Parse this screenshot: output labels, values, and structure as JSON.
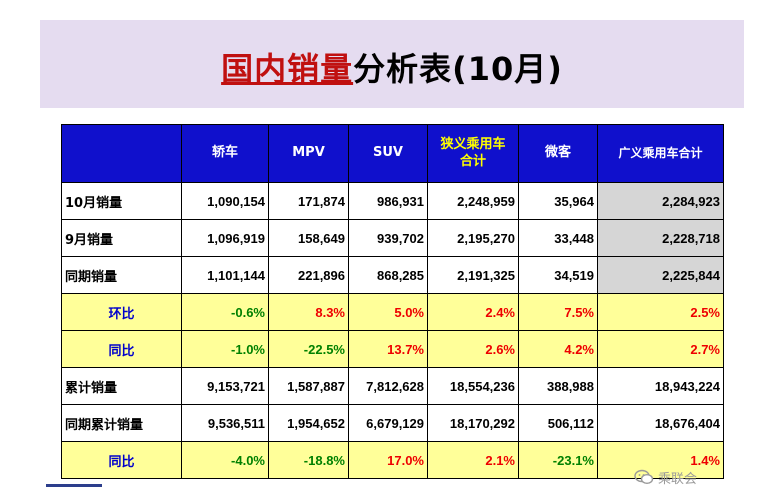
{
  "title": {
    "part1": "国内销量",
    "part2": "分析表(10月)"
  },
  "table": {
    "corner": "",
    "headers": [
      "轿车",
      "MPV",
      "SUV",
      "狭义乘用车\n合计",
      "微客",
      "广义乘用车合计"
    ],
    "rows": [
      {
        "label": "10月销量",
        "values": [
          "1,090,154",
          "171,874",
          "986,931",
          "2,248,959",
          "35,964",
          "2,284,923"
        ]
      },
      {
        "label": "9月销量",
        "values": [
          "1,096,919",
          "158,649",
          "939,702",
          "2,195,270",
          "33,448",
          "2,228,718"
        ]
      },
      {
        "label": "同期销量",
        "values": [
          "1,101,144",
          "221,896",
          "868,285",
          "2,191,325",
          "34,519",
          "2,225,844"
        ]
      },
      {
        "label": "环比",
        "values": [
          "-0.6%",
          "8.3%",
          "5.0%",
          "2.4%",
          "7.5%",
          "2.5%"
        ]
      },
      {
        "label": "同比",
        "values": [
          "-1.0%",
          "-22.5%",
          "13.7%",
          "2.6%",
          "4.2%",
          "2.7%"
        ]
      },
      {
        "label": "累计销量",
        "values": [
          "9,153,721",
          "1,587,887",
          "7,812,628",
          "18,554,236",
          "388,988",
          "18,943,224"
        ]
      },
      {
        "label": "同期累计销量",
        "values": [
          "9,536,511",
          "1,954,652",
          "6,679,129",
          "18,170,292",
          "506,112",
          "18,676,404"
        ]
      },
      {
        "label": "同比",
        "values": [
          "-4.0%",
          "-18.8%",
          "17.0%",
          "2.1%",
          "-23.1%",
          "1.4%"
        ]
      }
    ]
  },
  "watermark": {
    "text": "乘联会",
    "icon": "wechat-icon"
  },
  "colors": {
    "header_bg": "#1010cc",
    "header_highlight_text": "#ffff00",
    "ratio_row_bg": "#ffff99",
    "negative": "#008000",
    "positive": "#ee0000",
    "banner_bg": "#e5dcf0"
  }
}
